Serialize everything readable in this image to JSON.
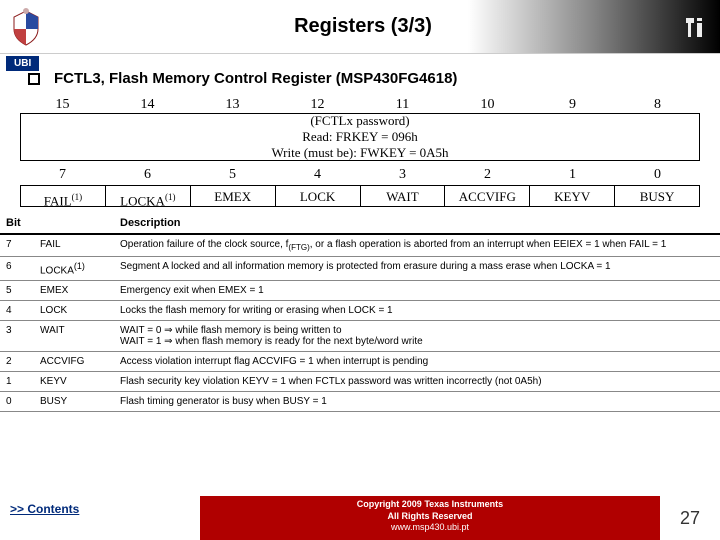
{
  "header": {
    "title": "Registers (3/3)",
    "ubi_tag": "UBI"
  },
  "subtitle": "FCTL3, Flash Memory Control Register (MSP430FG4618)",
  "upper_bits": [
    "15",
    "14",
    "13",
    "12",
    "11",
    "10",
    "9",
    "8"
  ],
  "upper_text_line1": "(FCTLx password)",
  "upper_text_line2": "Read: FRKEY = 096h",
  "upper_text_line3": "Write (must be): FWKEY = 0A5h",
  "lower_bits": [
    "7",
    "6",
    "5",
    "4",
    "3",
    "2",
    "1",
    "0"
  ],
  "lower_fields": [
    "FAIL(1)",
    "LOCKA(1)",
    "EMEX",
    "LOCK",
    "WAIT",
    "ACCVIFG",
    "KEYV",
    "BUSY"
  ],
  "table": {
    "head_bit": "Bit",
    "head_desc": "Description",
    "rows": [
      {
        "bit": "7",
        "name": "FAIL",
        "desc": "Operation failure of the clock source, f(FTG), or a flash operation is aborted from an interrupt when EEIEX = 1 when FAIL = 1"
      },
      {
        "bit": "6",
        "name": "LOCKA(1)",
        "desc": "Segment A locked and all information memory is protected from erasure during a mass erase when LOCKA = 1"
      },
      {
        "bit": "5",
        "name": "EMEX",
        "desc": "Emergency exit when EMEX = 1"
      },
      {
        "bit": "4",
        "name": "LOCK",
        "desc": "Locks the flash memory for writing or erasing when LOCK = 1"
      },
      {
        "bit": "3",
        "name": "WAIT",
        "desc": "WAIT = 0  ⇒   while flash memory is being written to\nWAIT = 1  ⇒   when flash memory is ready for the next byte/word write"
      },
      {
        "bit": "2",
        "name": "ACCVIFG",
        "desc": "Access violation interrupt flag ACCVIFG = 1 when interrupt is pending"
      },
      {
        "bit": "1",
        "name": "KEYV",
        "desc": "Flash security key violation KEYV = 1 when FCTLx password was written incorrectly (not 0A5h)"
      },
      {
        "bit": "0",
        "name": "BUSY",
        "desc": "Flash timing generator is busy when BUSY = 1"
      }
    ]
  },
  "footer": {
    "contents": ">> Contents",
    "copyright_line1": "Copyright 2009 Texas Instruments",
    "copyright_line2": "All Rights Reserved",
    "copyright_line3": "www.msp430.ubi.pt",
    "page": "27"
  },
  "colors": {
    "ubi_bg": "#002a7a",
    "copyright_bg": "#b00000"
  }
}
